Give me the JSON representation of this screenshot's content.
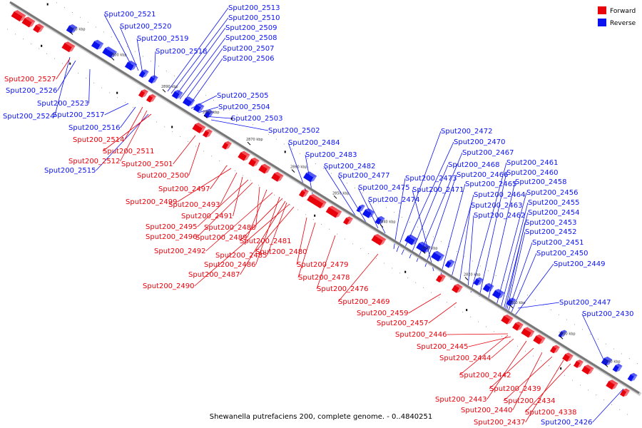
{
  "colors": {
    "forward": "#e8000b",
    "reverse": "#0a12f0",
    "backbone": "#777777"
  },
  "legend": [
    {
      "label": "Forward",
      "strand": "forward"
    },
    {
      "label": "Reverse",
      "strand": "reverse"
    }
  ],
  "caption": "Shewanella putrefaciens 200, complete genome. - 0..4840251",
  "ticks": [
    "2910 kbp",
    "2900 kbp",
    "2890 kbp",
    "2880 kbp",
    "2870 kbp",
    "2860 kbp",
    "2850 kbp",
    "2840 kbp",
    "2830 kbp",
    "2820 kbp",
    "2810 kbp",
    "2800 kbp",
    "2790 kbp"
  ],
  "genes_reverse": [
    "Sput200_2521",
    "Sput200_2520",
    "Sput200_2519",
    "Sput200_2518",
    "Sput200_2513",
    "Sput200_2510",
    "Sput200_2509",
    "Sput200_2508",
    "Sput200_2507",
    "Sput200_2506",
    "Sput200_2526",
    "Sput200_2523",
    "Sput200_2524",
    "Sput200_2517",
    "Sput200_2516",
    "Sput200_2515",
    "Sput200_2505",
    "Sput200_2504",
    "Sput200_2503",
    "Sput200_2502",
    "Sput200_2484",
    "Sput200_2483",
    "Sput200_2482",
    "Sput200_2477",
    "Sput200_2475",
    "Sput200_2474",
    "Sput200_2472",
    "Sput200_2470",
    "Sput200_2467",
    "Sput200_2468",
    "Sput200_2466",
    "Sput200_2473",
    "Sput200_2471",
    "Sput200_2465",
    "Sput200_2464",
    "Sput200_2463",
    "Sput200_2462",
    "Sput200_2461",
    "Sput200_2460",
    "Sput200_2458",
    "Sput200_2456",
    "Sput200_2455",
    "Sput200_2454",
    "Sput200_2453",
    "Sput200_2452",
    "Sput200_2451",
    "Sput200_2450",
    "Sput200_2449",
    "Sput200_2447",
    "Sput200_2430",
    "Sput200_2426"
  ],
  "genes_forward": [
    "Sput200_2527",
    "Sput200_2514",
    "Sput200_2511",
    "Sput200_2512",
    "Sput200_2501",
    "Sput200_2500",
    "Sput200_2497",
    "Sput200_2499",
    "Sput200_2493",
    "Sput200_2491",
    "Sput200_2495",
    "Sput200_2496",
    "Sput200_2488",
    "Sput200_2489",
    "Sput200_2492",
    "Sput200_2481",
    "Sput200_2485",
    "Sput200_2480",
    "Sput200_2486",
    "Sput200_2487",
    "Sput200_2490",
    "Sput200_2479",
    "Sput200_2478",
    "Sput200_2476",
    "Sput200_2469",
    "Sput200_2459",
    "Sput200_2457",
    "Sput200_2446",
    "Sput200_2445",
    "Sput200_2444",
    "Sput200_2442",
    "Sput200_2439",
    "Sput200_2443",
    "Sput200_2440",
    "Sput200_2434",
    "Sput200_2437",
    "Sput200_4338"
  ]
}
